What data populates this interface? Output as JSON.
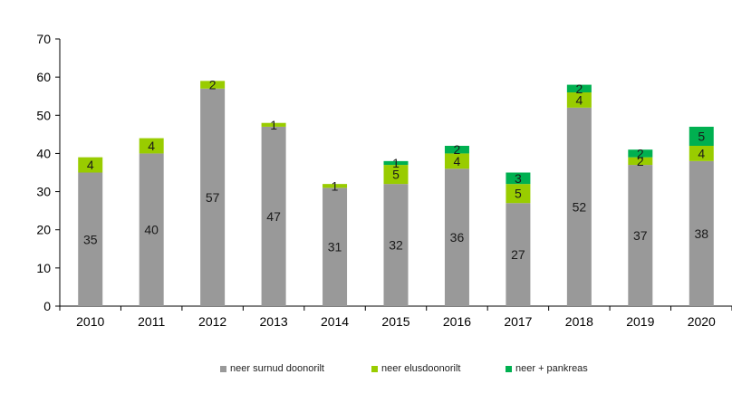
{
  "chart_data": {
    "type": "bar",
    "stacked": true,
    "categories": [
      "2010",
      "2011",
      "2012",
      "2013",
      "2014",
      "2015",
      "2016",
      "2017",
      "2018",
      "2019",
      "2020"
    ],
    "series": [
      {
        "name": "neer surnud doonorilt",
        "color": "#999999",
        "values": [
          35,
          40,
          57,
          47,
          31,
          32,
          36,
          27,
          52,
          37,
          38
        ]
      },
      {
        "name": "neer elusdoonorilt",
        "color": "#99cc00",
        "values": [
          4,
          4,
          2,
          1,
          1,
          5,
          4,
          5,
          4,
          2,
          4
        ]
      },
      {
        "name": "neer + pankreas",
        "color": "#00b050",
        "values": [
          0,
          0,
          0,
          0,
          0,
          1,
          2,
          3,
          2,
          2,
          5
        ]
      }
    ],
    "title": "",
    "xlabel": "",
    "ylabel": "",
    "ylim": [
      0,
      70
    ],
    "yticks": [
      0,
      10,
      20,
      30,
      40,
      50,
      60,
      70
    ],
    "grid": false,
    "legend_position": "bottom"
  }
}
